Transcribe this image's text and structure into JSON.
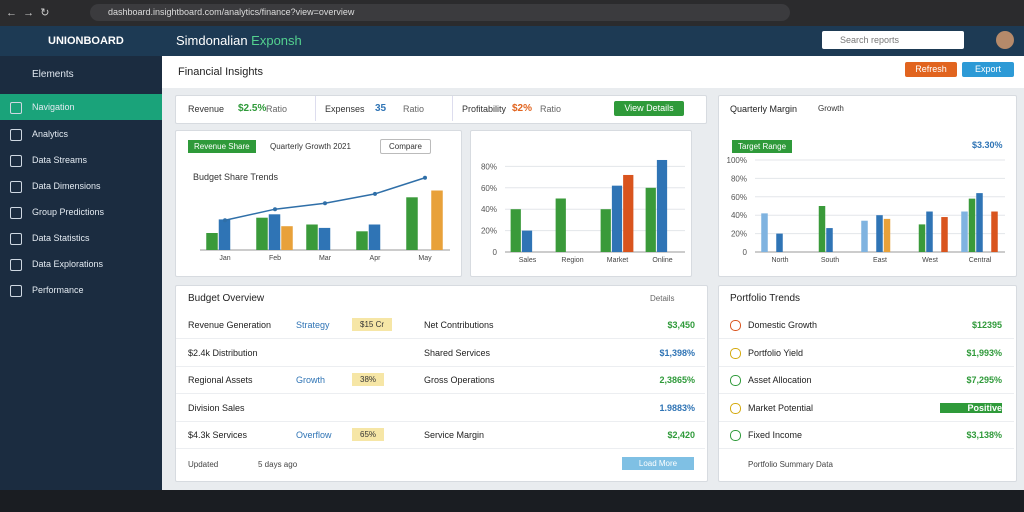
{
  "browser": {
    "url": "dashboard.insightboard.com/analytics/finance?view=overview"
  },
  "app": {
    "brand": "UNIONBOARD",
    "title": "Simdonalian",
    "title_accent": "Exponsh",
    "search": "Search reports"
  },
  "sidebar": {
    "section": "Elements",
    "items": [
      "Navigation",
      "Analytics",
      "Data Streams",
      "Data Dimensions",
      "Group Predictions",
      "Data Statistics",
      "Data Explorations",
      "Performance"
    ]
  },
  "page": {
    "title": "Financial Insights",
    "actions": [
      "Refresh",
      "Export"
    ]
  },
  "tabs": [
    {
      "label": "Revenue",
      "value": "$2.5%",
      "note": "Ratio"
    },
    {
      "label": "Expenses",
      "value": "35",
      "note": "Ratio"
    },
    {
      "label": "Profitability",
      "value": "$2%",
      "note": "Ratio"
    }
  ],
  "tabs_action": "View Details",
  "charts": [
    {
      "tag": "Revenue Share",
      "caption": "Quarterly Growth 2021",
      "button": "Compare",
      "title": "Budget Share Trends",
      "categories": [
        "Jan",
        "Feb",
        "Mar",
        "Apr",
        "May"
      ],
      "ylim": [
        0,
        100
      ],
      "series": [
        {
          "color": "#3a9a3a",
          "values": [
            20,
            38,
            30,
            22,
            62
          ]
        },
        {
          "color": "#2f74b5",
          "values": [
            36,
            42,
            26,
            30,
            0
          ]
        },
        {
          "color": "#e8a13a",
          "values": [
            0,
            28,
            0,
            0,
            70
          ]
        }
      ],
      "line": {
        "color": "#2f6fa8",
        "values": [
          35,
          48,
          55,
          66,
          85
        ]
      }
    },
    {
      "categories": [
        "Sales",
        "Region",
        "Market",
        "Online"
      ],
      "ylim": [
        0,
        100
      ],
      "yticks": [
        {
          "value": 0,
          "label": "0"
        },
        {
          "value": 20,
          "label": "20%"
        },
        {
          "value": 40,
          "label": "40%"
        },
        {
          "value": 60,
          "label": "60%"
        },
        {
          "value": 80,
          "label": "80%"
        }
      ],
      "series": [
        {
          "color": "#3a9a3a",
          "values": [
            40,
            50,
            40,
            60
          ]
        },
        {
          "color": "#2f74b5",
          "values": [
            20,
            0,
            62,
            86
          ]
        },
        {
          "color": "#d9541e",
          "values": [
            0,
            0,
            72,
            0
          ]
        }
      ]
    },
    {
      "title": "Quarterly Margin",
      "tag": "Growth",
      "caption": "Target Range",
      "value": "$3.30%",
      "categories": [
        "North",
        "South",
        "East",
        "West",
        "Central"
      ],
      "ylim": [
        0,
        100
      ],
      "yticks": [
        {
          "value": 0,
          "label": "0"
        },
        {
          "value": 20,
          "label": "20%"
        },
        {
          "value": 40,
          "label": "40%"
        },
        {
          "value": 60,
          "label": "60%"
        },
        {
          "value": 80,
          "label": "80%"
        },
        {
          "value": 100,
          "label": "100%"
        }
      ],
      "series": [
        {
          "color": "#7fb3e0",
          "values": [
            42,
            0,
            34,
            0,
            44
          ]
        },
        {
          "color": "#3a9a3a",
          "values": [
            0,
            50,
            0,
            30,
            58
          ]
        },
        {
          "color": "#2f74b5",
          "values": [
            20,
            26,
            40,
            44,
            64
          ]
        },
        {
          "color": "#e8a13a",
          "values": [
            0,
            0,
            36,
            0,
            0
          ]
        },
        {
          "color": "#d9541e",
          "values": [
            0,
            0,
            0,
            38,
            44
          ]
        }
      ]
    }
  ],
  "budget": {
    "title": "Budget Overview",
    "action": "Details",
    "rows": [
      {
        "label": "Revenue Generation",
        "tag": "Strategy",
        "badge": "$15 Cr",
        "right": "Net Contributions",
        "value": "$3,450"
      },
      {
        "label": "$2.4k Distribution",
        "tag": "",
        "badge": "",
        "right": "Shared Services",
        "value": "$1,398%"
      },
      {
        "label": "Regional Assets",
        "tag": "Growth",
        "badge": "38%",
        "right": "Gross Operations",
        "value": "2,3865%"
      },
      {
        "label": "Division Sales",
        "tag": "",
        "badge": "",
        "right": "",
        "value": "1.9883%"
      },
      {
        "label": "$4.3k Services",
        "tag": "Overflow",
        "badge": "65%",
        "right": "Service Margin",
        "value": "$2,420"
      }
    ],
    "footer": {
      "left": "Updated",
      "right": "5 days ago",
      "button": "Load More"
    }
  },
  "portfolio": {
    "title": "Portfolio Trends",
    "rows": [
      {
        "label": "Domestic Growth",
        "value": "$12395"
      },
      {
        "label": "Portfolio Yield",
        "value": "$1,993%"
      },
      {
        "label": "Asset Allocation",
        "value": "$7,295%"
      },
      {
        "label": "Market Potential",
        "value": "Positive"
      },
      {
        "label": "Fixed Income",
        "value": "$3,138%"
      }
    ],
    "footer": "Portfolio Summary Data"
  }
}
